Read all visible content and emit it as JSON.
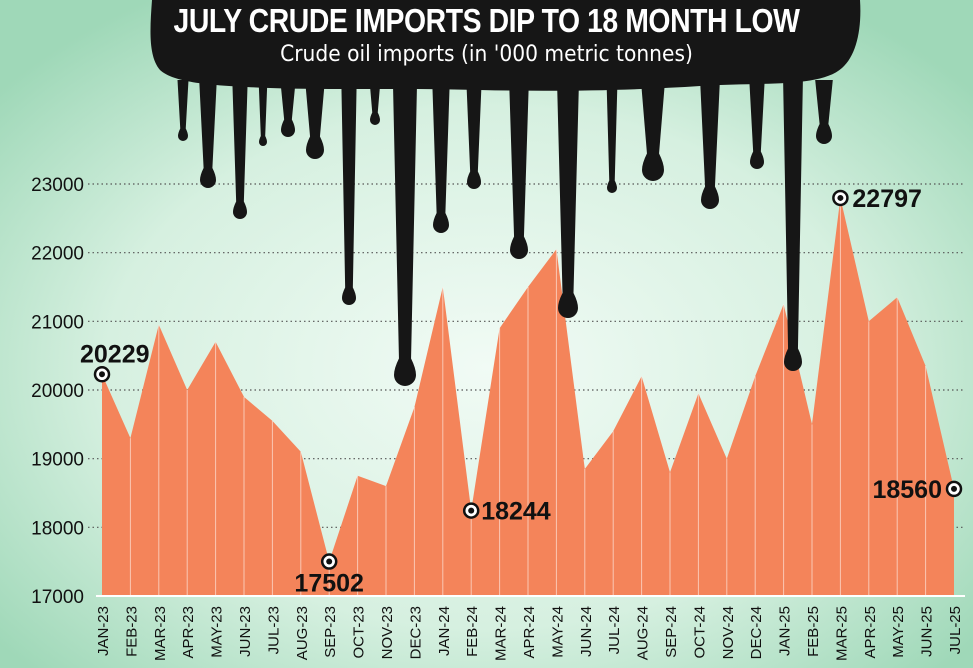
{
  "chart_data": {
    "type": "area",
    "title": "JULY CRUDE IMPORTS DIP TO 18 MONTH LOW",
    "subtitle": "Crude oil imports (in '000 metric tonnes)",
    "xlabel": "",
    "ylabel": "",
    "ylim": [
      17000,
      23000
    ],
    "yticks": [
      17000,
      18000,
      19000,
      20000,
      21000,
      22000,
      23000
    ],
    "grid": "horizontal dotted",
    "categories": [
      "JAN-23",
      "FEB-23",
      "MAR-23",
      "APR-23",
      "MAY-23",
      "JUN-23",
      "JUL-23",
      "AUG-23",
      "SEP-23",
      "OCT-23",
      "NOV-23",
      "DEC-23",
      "JAN-24",
      "FEB-24",
      "MAR-24",
      "APR-24",
      "MAY-24",
      "JUN-24",
      "JUL-24",
      "AUG-24",
      "SEP-24",
      "OCT-24",
      "NOV-24",
      "DEC-24",
      "JAN-25",
      "FEB-25",
      "MAR-25",
      "APR-25",
      "MAY-25",
      "JUN-25",
      "JUL-25"
    ],
    "values": [
      20229,
      19300,
      20950,
      20000,
      20700,
      19900,
      19550,
      19100,
      17502,
      18750,
      18600,
      19750,
      21500,
      18244,
      20900,
      21500,
      22050,
      18850,
      19400,
      20200,
      18800,
      19950,
      19000,
      20200,
      21250,
      19500,
      22797,
      21000,
      21350,
      20350,
      18560
    ],
    "annotations": [
      {
        "category": "JAN-23",
        "label": "20229"
      },
      {
        "category": "SEP-23",
        "label": "17502"
      },
      {
        "category": "FEB-24",
        "label": "18244"
      },
      {
        "category": "MAR-25",
        "label": "22797"
      },
      {
        "category": "JUL-25",
        "label": "18560"
      }
    ],
    "colors": {
      "area": "#f4845a",
      "background": "#c7e9d5",
      "oil": "#161616",
      "grid": "#555555",
      "text": "#111111",
      "marker": "#111111"
    }
  }
}
